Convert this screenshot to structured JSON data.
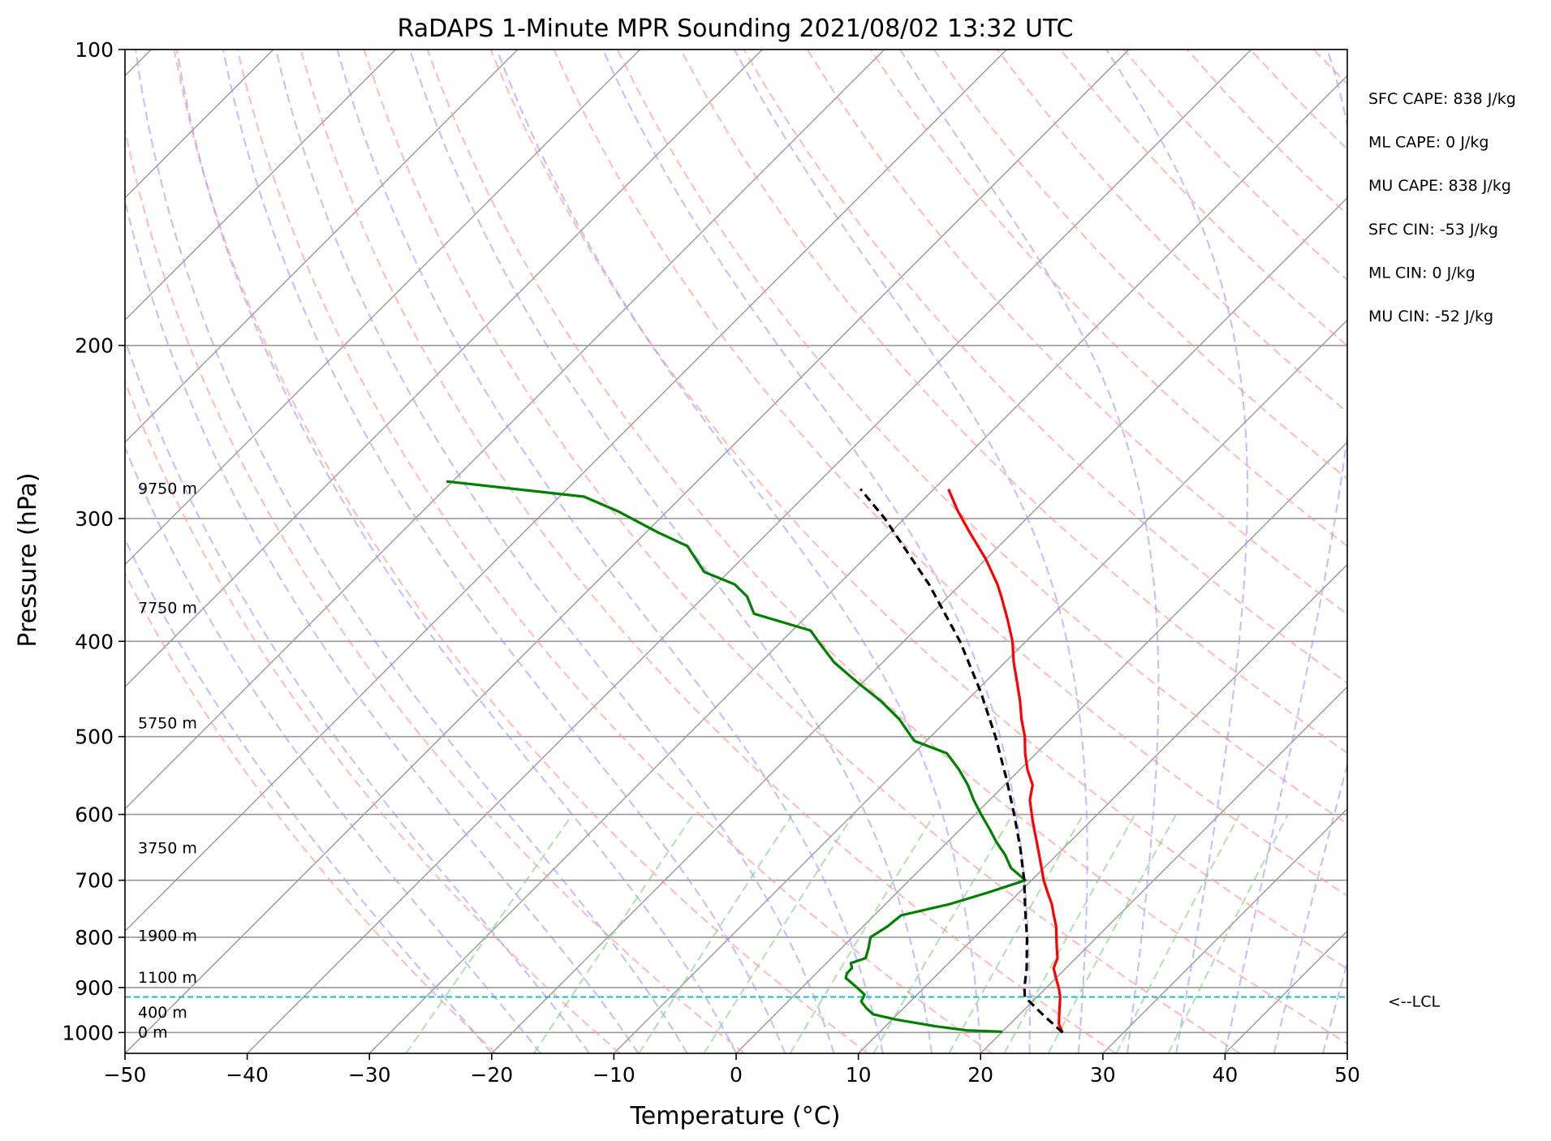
{
  "chart_data": {
    "type": "line",
    "title": "RaDAPS 1-Minute MPR Sounding 2021/08/02 13:32 UTC",
    "xlabel": "Temperature (°C)",
    "ylabel": "Pressure (hPa)",
    "xlim": [
      -50,
      50
    ],
    "ylim": [
      1050,
      100
    ],
    "y_scale": "log",
    "grid": true,
    "x_ticks": [
      -50,
      -40,
      -30,
      -20,
      -10,
      0,
      10,
      20,
      30,
      40,
      50
    ],
    "x_tick_labels": [
      "−50",
      "−40",
      "−30",
      "−20",
      "−10",
      "0",
      "10",
      "20",
      "30",
      "40",
      "50"
    ],
    "y_ticks": [
      100,
      200,
      300,
      400,
      500,
      600,
      700,
      800,
      900,
      1000
    ],
    "y_tick_labels": [
      "100",
      "200",
      "300",
      "400",
      "500",
      "600",
      "700",
      "800",
      "900",
      "1000"
    ],
    "skew_degrees": 45,
    "colors": {
      "temperature": "#ff0000",
      "dewpoint": "#008000",
      "parcel": "#000000",
      "lcl": "#17becf",
      "dry_adiabats": "#ff9999",
      "moist_adiabats": "#9999ff",
      "mixing_ratio": "#88cc88",
      "isotherms": "#999999"
    },
    "series": [
      {
        "key": "temperature",
        "style": "solid",
        "points": [
          [
            1000,
            25.0
          ],
          [
            980,
            24.0
          ],
          [
            960,
            23.3
          ],
          [
            940,
            22.6
          ],
          [
            920,
            21.9
          ],
          [
            900,
            21.0
          ],
          [
            880,
            20.0
          ],
          [
            860,
            19.0
          ],
          [
            840,
            18.5
          ],
          [
            820,
            17.6
          ],
          [
            800,
            16.7
          ],
          [
            780,
            15.8
          ],
          [
            760,
            14.7
          ],
          [
            740,
            13.6
          ],
          [
            720,
            12.3
          ],
          [
            700,
            11.0
          ],
          [
            670,
            9.2
          ],
          [
            640,
            7.3
          ],
          [
            610,
            5.3
          ],
          [
            580,
            3.3
          ],
          [
            560,
            2.3
          ],
          [
            540,
            0.6
          ],
          [
            520,
            -0.9
          ],
          [
            500,
            -2.3
          ],
          [
            480,
            -4.0
          ],
          [
            460,
            -5.6
          ],
          [
            440,
            -7.4
          ],
          [
            420,
            -9.3
          ],
          [
            400,
            -11.1
          ],
          [
            380,
            -13.3
          ],
          [
            360,
            -15.7
          ],
          [
            350,
            -17.0
          ],
          [
            330,
            -20.0
          ],
          [
            310,
            -23.5
          ],
          [
            295,
            -26.2
          ],
          [
            280,
            -28.8
          ]
        ]
      },
      {
        "key": "dewpoint",
        "style": "solid",
        "points": [
          [
            998,
            20.0
          ],
          [
            995,
            17.0
          ],
          [
            985,
            14.0
          ],
          [
            970,
            10.3
          ],
          [
            958,
            8.0
          ],
          [
            945,
            7.0
          ],
          [
            930,
            6.0
          ],
          [
            915,
            5.7
          ],
          [
            900,
            4.5
          ],
          [
            880,
            2.8
          ],
          [
            870,
            2.5
          ],
          [
            860,
            2.5
          ],
          [
            850,
            2.0
          ],
          [
            840,
            2.8
          ],
          [
            820,
            2.2
          ],
          [
            800,
            1.5
          ],
          [
            780,
            2.0
          ],
          [
            760,
            2.2
          ],
          [
            740,
            5.3
          ],
          [
            720,
            7.5
          ],
          [
            700,
            9.5
          ],
          [
            680,
            7.3
          ],
          [
            660,
            5.8
          ],
          [
            640,
            4.0
          ],
          [
            620,
            2.3
          ],
          [
            600,
            0.5
          ],
          [
            580,
            -1.3
          ],
          [
            560,
            -3.0
          ],
          [
            540,
            -5.0
          ],
          [
            520,
            -7.3
          ],
          [
            505,
            -11.0
          ],
          [
            480,
            -14.0
          ],
          [
            460,
            -17.0
          ],
          [
            440,
            -20.5
          ],
          [
            420,
            -24.0
          ],
          [
            400,
            -27.0
          ],
          [
            390,
            -28.5
          ],
          [
            375,
            -34.5
          ],
          [
            360,
            -36.5
          ],
          [
            350,
            -38.5
          ],
          [
            340,
            -42.0
          ],
          [
            320,
            -45.5
          ],
          [
            310,
            -49.0
          ],
          [
            295,
            -54.0
          ],
          [
            285,
            -58.0
          ],
          [
            275,
            -70.5
          ]
        ]
      },
      {
        "key": "parcel",
        "style": "dashed",
        "points": [
          [
            1000,
            25.0
          ],
          [
            960,
            22.0
          ],
          [
            920,
            19.0
          ],
          [
            900,
            18.2
          ],
          [
            860,
            16.8
          ],
          [
            800,
            14.3
          ],
          [
            750,
            11.9
          ],
          [
            700,
            9.4
          ],
          [
            650,
            6.5
          ],
          [
            600,
            3.2
          ],
          [
            550,
            -0.5
          ],
          [
            500,
            -4.7
          ],
          [
            450,
            -9.6
          ],
          [
            400,
            -15.4
          ],
          [
            350,
            -22.6
          ],
          [
            300,
            -31.6
          ],
          [
            280,
            -36.0
          ]
        ]
      }
    ],
    "lcl": {
      "pressure": 920,
      "label": "<--LCL"
    },
    "height_labels": [
      {
        "text": "9750 m",
        "p": 280
      },
      {
        "text": "7750 m",
        "p": 370
      },
      {
        "text": "5750 m",
        "p": 485
      },
      {
        "text": "3750 m",
        "p": 650
      },
      {
        "text": "1900 m",
        "p": 798
      },
      {
        "text": "1100 m",
        "p": 880
      },
      {
        "text": "400 m",
        "p": 955
      },
      {
        "text": "0 m",
        "p": 1000
      }
    ],
    "annotations": [
      "SFC CAPE: 838 J/kg",
      "ML CAPE: 0 J/kg",
      "MU CAPE: 838 J/kg",
      "SFC CIN: -53 J/kg",
      "ML CIN: 0 J/kg",
      "MU CIN: -52 J/kg"
    ]
  }
}
